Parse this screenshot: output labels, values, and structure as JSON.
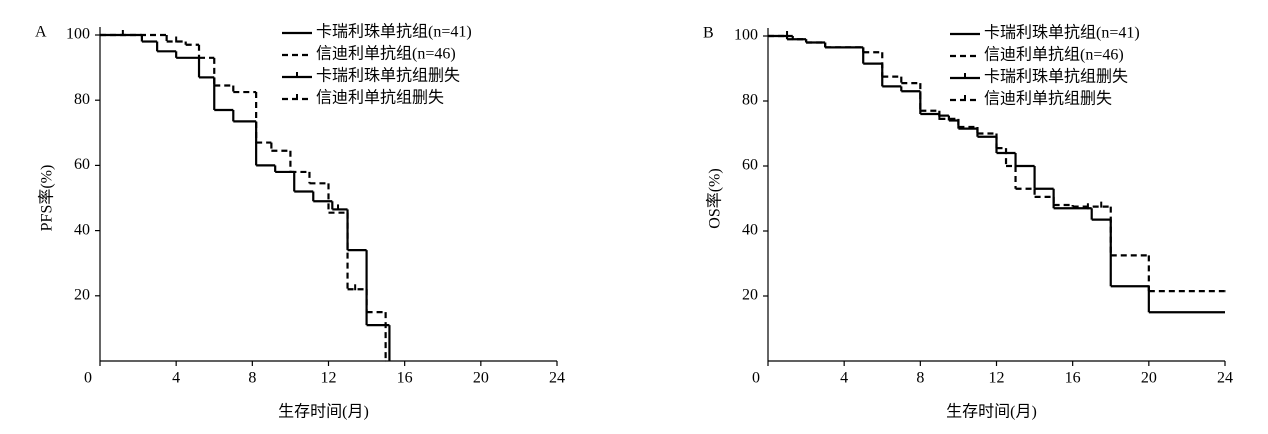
{
  "chart_data": [
    {
      "type": "step",
      "panel_label": "A",
      "ylabel": "PFS率(%)",
      "xlabel": "生存时间(月)",
      "xlim": [
        0,
        24
      ],
      "xticks": [
        0,
        4,
        8,
        12,
        16,
        20,
        24
      ],
      "ylim": [
        0,
        100
      ],
      "yticks": [
        20,
        40,
        60,
        80,
        100
      ],
      "legend": "upper right",
      "series": [
        {
          "name": "卡瑞利珠单抗组(n=41)",
          "color": "#000000",
          "style": "solid",
          "x": [
            0,
            2.2,
            3,
            4,
            5.2,
            6,
            7,
            8.2,
            9.2,
            10.2,
            11.2,
            12.2,
            13,
            14,
            15.2
          ],
          "values": [
            100,
            98,
            95,
            93,
            87,
            77,
            73.5,
            60,
            58,
            52,
            49,
            46.5,
            34,
            11,
            0
          ]
        },
        {
          "name": "信迪利单抗组(n=46)",
          "color": "#000000",
          "style": "dashed",
          "x": [
            0,
            3.5,
            4.5,
            5.2,
            6,
            7,
            8.2,
            9,
            10,
            11,
            12,
            13,
            14,
            15
          ],
          "values": [
            100,
            98,
            97,
            93,
            84.5,
            82.5,
            67,
            64.5,
            58,
            54.5,
            45.5,
            22,
            15,
            0
          ]
        },
        {
          "name": "卡瑞利珠单抗组删失",
          "color": "#000000",
          "style": "solid",
          "marker": "censor",
          "x": [
            1.2,
            12.5
          ],
          "values": [
            100,
            46.5
          ]
        },
        {
          "name": "信迪利单抗组删失",
          "color": "#000000",
          "style": "dashed",
          "marker": "censor",
          "x": [
            4,
            13.4
          ],
          "values": [
            98,
            22
          ]
        }
      ]
    },
    {
      "type": "step",
      "panel_label": "B",
      "ylabel": "OS率(%)",
      "xlabel": "生存时间(月)",
      "xlim": [
        0,
        24
      ],
      "xticks": [
        0,
        4,
        8,
        12,
        16,
        20,
        24
      ],
      "ylim": [
        0,
        100
      ],
      "yticks": [
        20,
        40,
        60,
        80,
        100
      ],
      "legend": "upper right",
      "series": [
        {
          "name": "卡瑞利珠单抗组(n=41)",
          "color": "#000000",
          "style": "solid",
          "x": [
            0,
            1.3,
            2,
            3,
            5,
            6,
            7,
            8,
            9,
            9.5,
            10,
            11,
            12,
            13,
            14,
            15,
            17,
            18,
            20,
            24
          ],
          "values": [
            100,
            99,
            98,
            96.5,
            91.5,
            84.5,
            83,
            76,
            75.5,
            74,
            71.5,
            69,
            64,
            60,
            53,
            47,
            43.5,
            23,
            15,
            15
          ]
        },
        {
          "name": "信迪利单抗组(n=46)",
          "color": "#000000",
          "style": "dashed",
          "x": [
            0,
            1,
            2,
            3,
            5,
            6,
            7,
            8,
            9,
            10,
            11,
            12,
            12.5,
            13,
            14,
            15,
            16,
            18,
            20,
            24
          ],
          "values": [
            100,
            99,
            98,
            96.5,
            95,
            87.5,
            85.5,
            77,
            74.5,
            72,
            70,
            65.5,
            60,
            53,
            50.5,
            48,
            47.5,
            32.5,
            21.5,
            21.5
          ]
        },
        {
          "name": "卡瑞利珠单抗组删失",
          "color": "#000000",
          "style": "solid",
          "marker": "censor",
          "x": [
            1,
            16.8
          ],
          "values": [
            100,
            47
          ]
        },
        {
          "name": "信迪利单抗组删失",
          "color": "#000000",
          "style": "dashed",
          "marker": "censor",
          "x": [
            9,
            17.5
          ],
          "values": [
            74.5,
            47.5
          ]
        }
      ]
    }
  ]
}
